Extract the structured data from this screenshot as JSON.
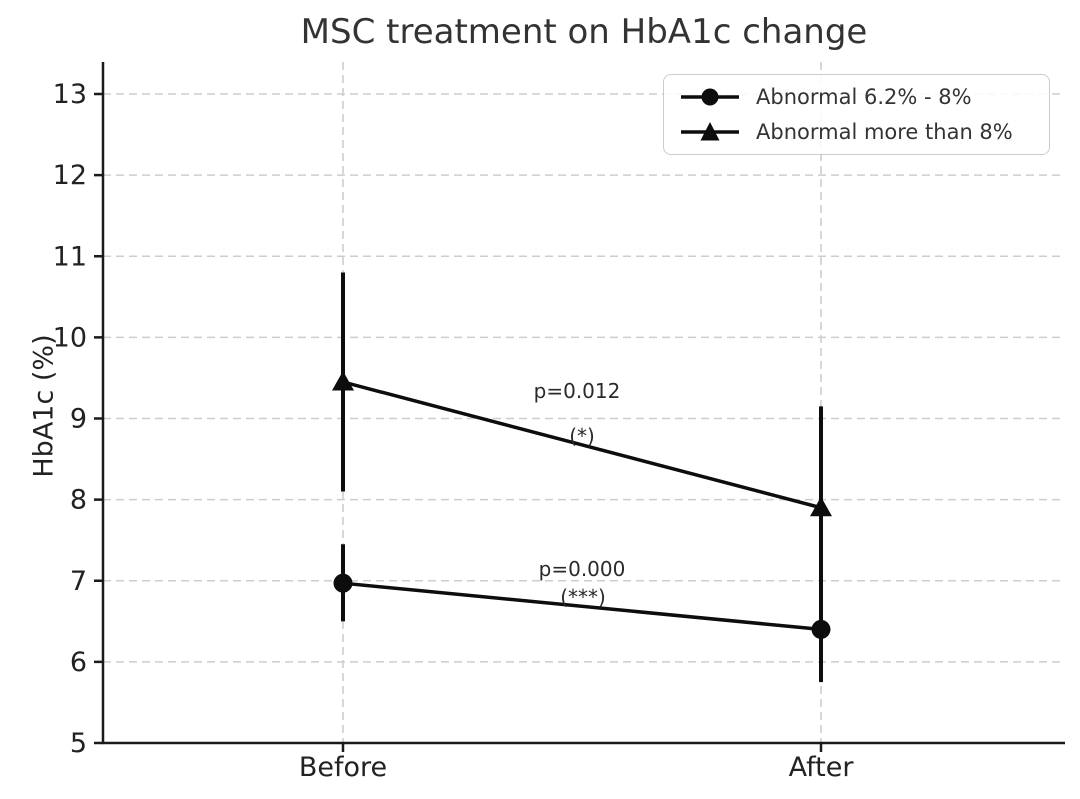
{
  "chart_data": {
    "type": "line",
    "title": "MSC treatment on HbA1c change",
    "xlabel": "",
    "ylabel": "HbA1c (%)",
    "categories": [
      "Before",
      "After"
    ],
    "yticks": [
      5,
      6,
      7,
      8,
      9,
      10,
      11,
      12,
      13
    ],
    "ylim": [
      5,
      13.4
    ],
    "grid": "dashed",
    "grid_color": "#cdcdcd",
    "axis_color": "#1a1a1a",
    "legend_position": "upper right",
    "series": [
      {
        "name": "Abnormal 6.2% - 8%",
        "marker": "circle",
        "color": "#0d0d0d",
        "values": [
          6.97,
          6.4
        ],
        "error_low": [
          6.5,
          5.75
        ],
        "error_high": [
          7.45,
          7.05
        ]
      },
      {
        "name": "Abnormal more than 8%",
        "marker": "triangle",
        "color": "#0d0d0d",
        "values": [
          9.45,
          7.9
        ],
        "error_low": [
          8.1,
          6.65
        ],
        "error_high": [
          10.8,
          9.15
        ]
      }
    ],
    "annotations": [
      {
        "label": "p=0.012",
        "stars": "(*)"
      },
      {
        "label": "p=0.000",
        "stars": "(***)"
      }
    ]
  }
}
